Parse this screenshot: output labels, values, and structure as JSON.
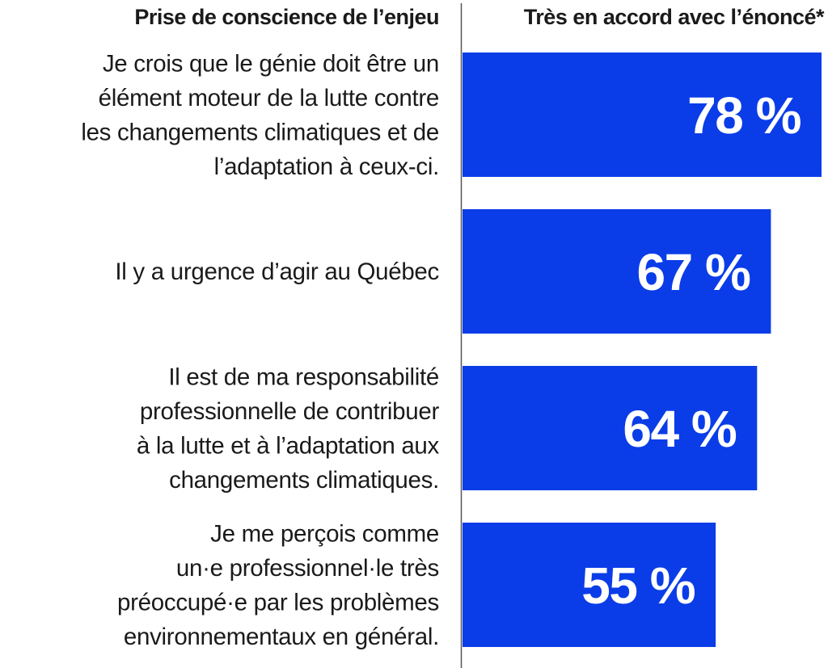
{
  "chart_data": {
    "type": "bar",
    "orientation": "horizontal",
    "left_header": "Prise de conscience de l’enjeu",
    "right_header": "Très en accord avec l’énoncé*",
    "categories": [
      [
        "Je crois que le génie doit être un",
        "élément moteur de la lutte contre",
        "les changements climatiques et de",
        "l’adaptation à ceux-ci."
      ],
      [
        "Il y a urgence d’agir au Québec"
      ],
      [
        "Il est de ma responsabilité",
        "professionnelle de contribuer",
        "à la lutte et à l’adaptation aux",
        "changements climatiques."
      ],
      [
        "Je me perçois comme",
        "un·e professionnel·le très",
        "préoccupé·e par les problèmes",
        "environnementaux en général."
      ]
    ],
    "values": [
      78,
      67,
      64,
      55
    ],
    "value_labels": [
      "78 %",
      "67 %",
      "64 %",
      "55 %"
    ],
    "unit": "%",
    "xlim": [
      0,
      78
    ],
    "bar_color": "#0a3de8",
    "value_label_color": "#ffffff",
    "divider_color": "#555555"
  }
}
